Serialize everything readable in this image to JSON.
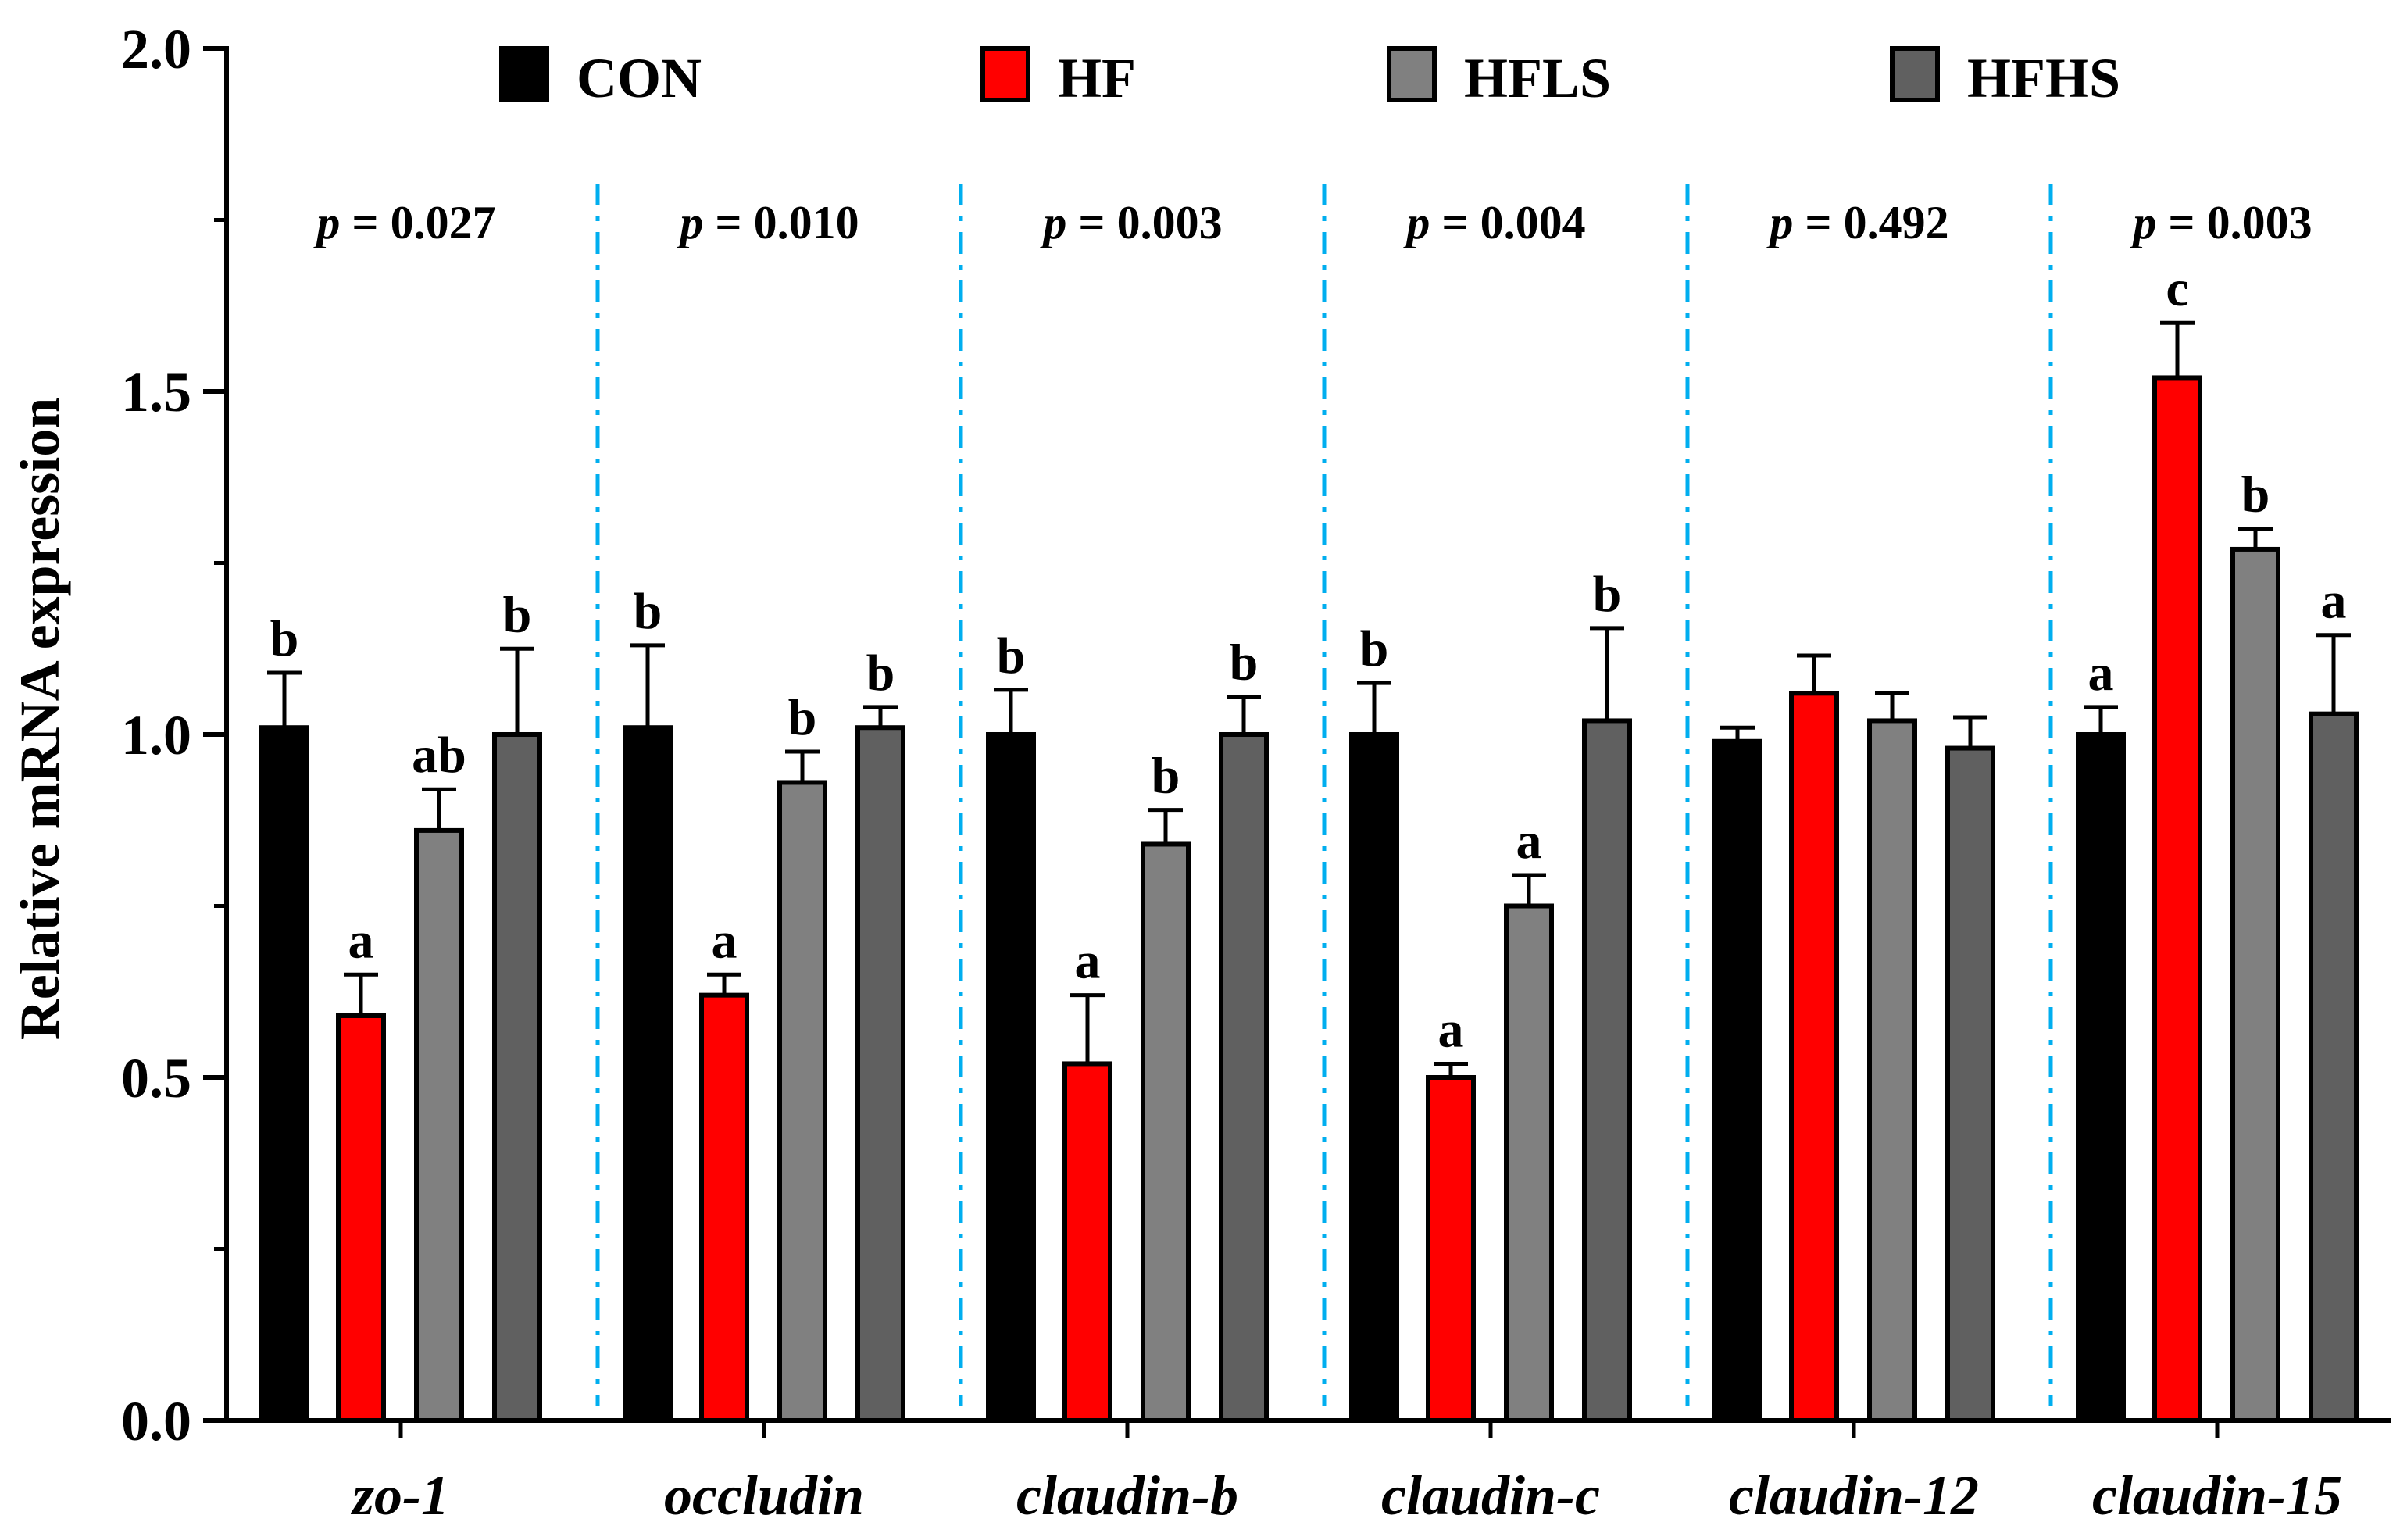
{
  "chart_data": {
    "type": "bar",
    "title": "",
    "xlabel": "",
    "ylabel": "Relative mRNA expression",
    "ylim": [
      0,
      2.0
    ],
    "yticks": [
      "0.0",
      "0.5",
      "1.0",
      "1.5",
      "2.0"
    ],
    "categories": [
      "zo-1",
      "occludin",
      "claudin-b",
      "claudin-c",
      "claudin-12",
      "claudin-15"
    ],
    "series": [
      {
        "name": "CON",
        "color": "#000000",
        "values": [
          1.01,
          1.01,
          1.0,
          1.0,
          0.99,
          1.0
        ],
        "errors": [
          0.08,
          0.12,
          0.065,
          0.075,
          0.02,
          0.04
        ],
        "letters": [
          "b",
          "b",
          "b",
          "b",
          "",
          "a"
        ]
      },
      {
        "name": "HF",
        "color": "#ff0000",
        "values": [
          0.59,
          0.62,
          0.52,
          0.5,
          1.06,
          1.52
        ],
        "errors": [
          0.06,
          0.03,
          0.1,
          0.02,
          0.055,
          0.08
        ],
        "letters": [
          "a",
          "a",
          "a",
          "a",
          "",
          "c"
        ]
      },
      {
        "name": "HFLS",
        "color": "#808080",
        "values": [
          0.86,
          0.93,
          0.84,
          0.75,
          1.02,
          1.27
        ],
        "errors": [
          0.06,
          0.045,
          0.05,
          0.045,
          0.04,
          0.03
        ],
        "letters": [
          "ab",
          "b",
          "b",
          "a",
          "",
          "b"
        ]
      },
      {
        "name": "HFHS",
        "color": "#606060",
        "values": [
          1.0,
          1.01,
          1.0,
          1.02,
          0.98,
          1.03
        ],
        "errors": [
          0.125,
          0.03,
          0.055,
          0.135,
          0.045,
          0.115
        ],
        "letters": [
          "b",
          "b",
          "b",
          "b",
          "",
          "a"
        ]
      }
    ],
    "p_values": [
      "0.027",
      "0.010",
      "0.003",
      "0.004",
      "0.492",
      "0.003"
    ],
    "p_prefix": "p",
    "p_equals": " = ",
    "legend_position": "top",
    "separator_color": "#00aeef"
  }
}
